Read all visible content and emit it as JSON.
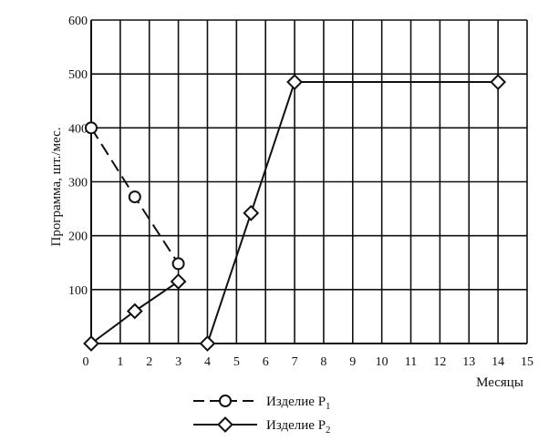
{
  "chart_data": {
    "type": "line",
    "title": "",
    "xlabel": "Месяцы",
    "ylabel": "Программа, шт./мес.",
    "xlim": [
      0,
      15
    ],
    "ylim": [
      0,
      600
    ],
    "x_ticks": [
      "0",
      "1",
      "2",
      "3",
      "4",
      "5",
      "6",
      "7",
      "8",
      "9",
      "10",
      "11",
      "12",
      "13",
      "14",
      "15"
    ],
    "y_ticks": [
      "100",
      "200",
      "300",
      "400",
      "500",
      "600"
    ],
    "grid": true,
    "legend_position": "bottom",
    "series": [
      {
        "name": "Изделие P",
        "subscript": "1",
        "line_style": "dashed",
        "marker": "circle",
        "points": [
          [
            0,
            400
          ],
          [
            1.5,
            272
          ],
          [
            3,
            148
          ]
        ]
      },
      {
        "name": "Изделие P",
        "subscript": "2",
        "line_style": "solid",
        "marker": "diamond",
        "segments": [
          [
            [
              0,
              0
            ],
            [
              1.5,
              60
            ],
            [
              3,
              115
            ]
          ],
          [
            [
              4,
              0
            ],
            [
              5.5,
              242
            ],
            [
              7,
              485
            ],
            [
              14,
              485
            ]
          ]
        ]
      }
    ]
  }
}
